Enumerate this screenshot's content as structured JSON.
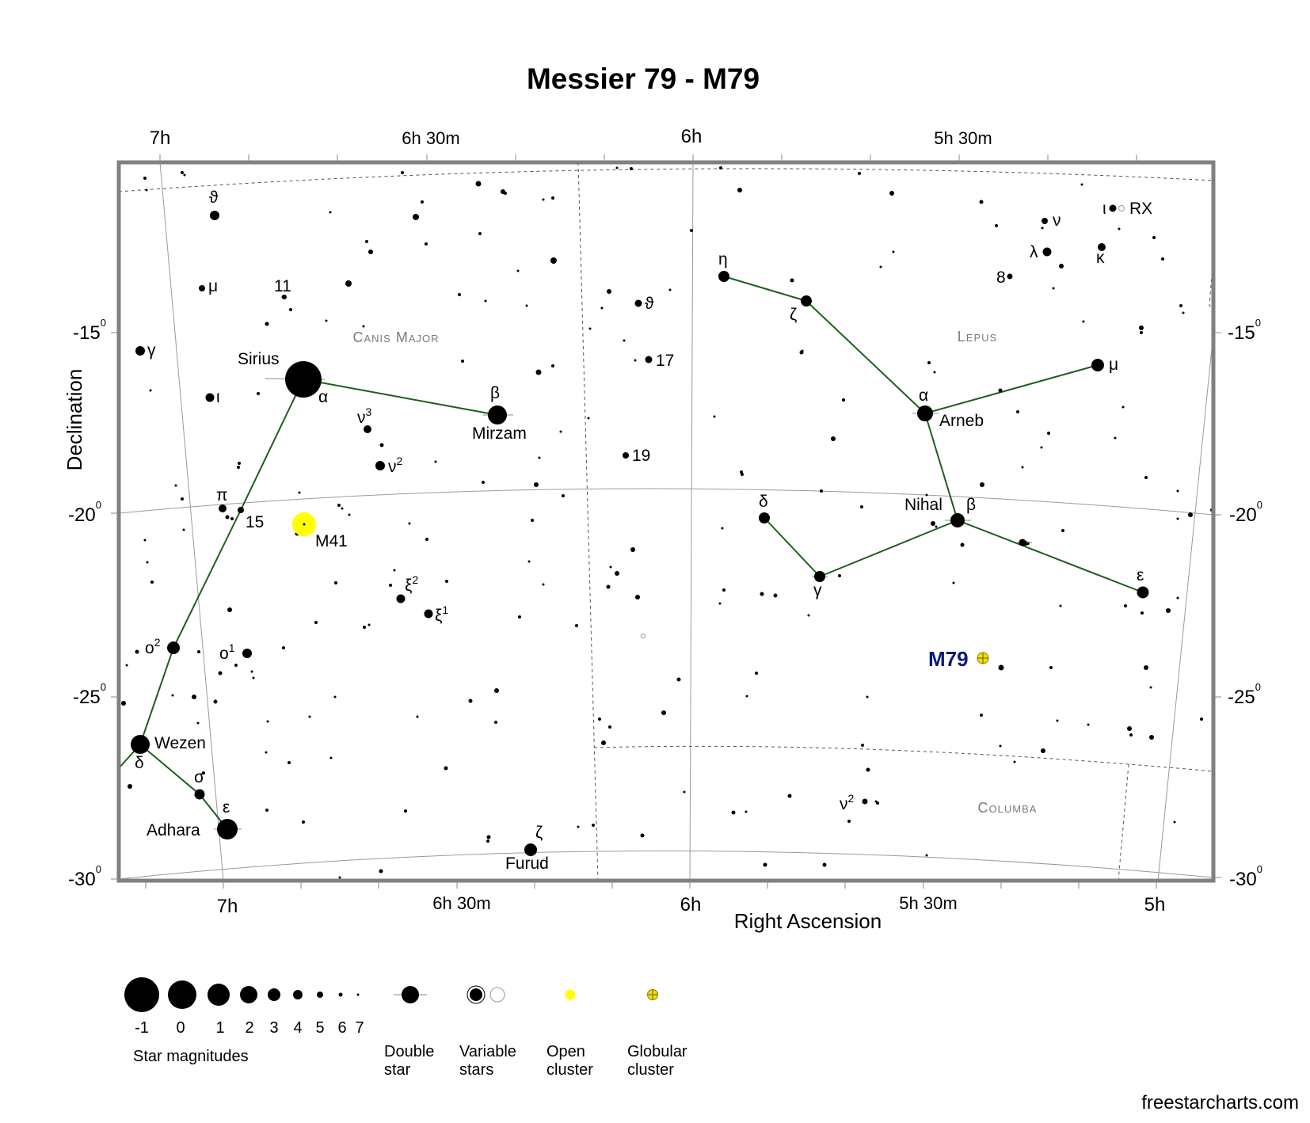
{
  "title": "Messier 79 - M79",
  "axes": {
    "y_label": "Declination",
    "x_label": "Right Ascension",
    "ra_top": [
      "7h",
      "6h 30m",
      "6h",
      "5h 30m"
    ],
    "ra_bottom": [
      "7h",
      "6h 30m",
      "6h",
      "5h 30m",
      "5h"
    ],
    "dec_left": [
      "-15",
      "-20",
      "-25",
      "-30"
    ],
    "dec_right": [
      "-15",
      "-20",
      "-25",
      "-30"
    ],
    "degree_mark": "0"
  },
  "constellations": [
    "Canis Major",
    "Lepus",
    "Columba"
  ],
  "star_labels": {
    "sirius": "Sirius",
    "sirius_greek": "α",
    "mirzam": "Mirzam",
    "mirzam_greek": "β",
    "wezen": "Wezen",
    "wezen_greek": "δ",
    "adhara": "Adhara",
    "adhara_greek": "ε",
    "furud": "Furud",
    "furud_greek": "ζ",
    "arneb": "Arneb",
    "arneb_greek": "α",
    "nihal": "Nihal",
    "nihal_greek": "β",
    "cma_theta": "ϑ",
    "cma_mu": "μ",
    "cma_11": "11",
    "cma_gamma": "γ",
    "cma_iota": "ι",
    "cma_nu3": "ν",
    "cma_nu3_sup": "3",
    "cma_nu2": "ν",
    "cma_nu2_sup": "2",
    "cma_pi": "π",
    "cma_15": "15",
    "cma_xi2": "ξ",
    "cma_xi2_sup": "2",
    "cma_xi1": "ξ",
    "cma_xi1_sup": "1",
    "cma_o2": "o",
    "cma_o2_sup": "2",
    "cma_o1": "o",
    "cma_o1_sup": "1",
    "cma_sigma": "σ",
    "lep_eta": "η",
    "lep_zeta": "ζ",
    "lep_mu": "μ",
    "lep_delta": "δ",
    "lep_gamma": "γ",
    "lep_epsilon": "ε",
    "lep_iota": "ι",
    "lep_rx": "RX",
    "lep_nu": "ν",
    "lep_lambda": "λ",
    "lep_kappa": "κ",
    "lep_8": "8",
    "mon_theta": "ϑ",
    "mon_17": "17",
    "mon_19": "19",
    "col_nu2": "ν",
    "col_nu2_sup": "2"
  },
  "objects": {
    "m41": "M41",
    "m79": "M79"
  },
  "legend": {
    "magnitudes": [
      "-1",
      "0",
      "1",
      "2",
      "3",
      "4",
      "5",
      "6",
      "7"
    ],
    "magnitudes_caption": "Star magnitudes",
    "double_star": [
      "Double",
      "star"
    ],
    "variable_stars": [
      "Variable",
      "stars"
    ],
    "open_cluster": [
      "Open",
      "cluster"
    ],
    "globular_cluster": [
      "Globular",
      "cluster"
    ]
  },
  "credit": "freestarcharts.com",
  "colors": {
    "stick_line": "#1d5e1d",
    "open_cluster": "#ffff00",
    "globular_cluster": "#f0e000",
    "m79_label": "#0b1a7a",
    "frame": "#808080"
  }
}
